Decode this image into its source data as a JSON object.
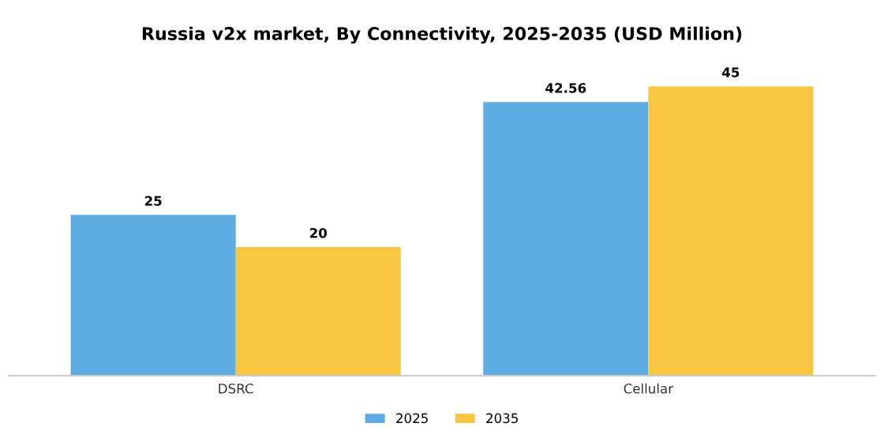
{
  "chart_data": {
    "type": "bar",
    "title": "Russia v2x market, By Connectivity, 2025-2035 (USD Million)",
    "categories": [
      "DSRC",
      "Cellular"
    ],
    "series": [
      {
        "name": "2025",
        "color": "#5dade2",
        "values": [
          25,
          42.56
        ]
      },
      {
        "name": "2035",
        "color": "#f9c642",
        "values": [
          20,
          45
        ]
      }
    ],
    "data_labels": true,
    "legend": "bottom",
    "grid": false
  }
}
